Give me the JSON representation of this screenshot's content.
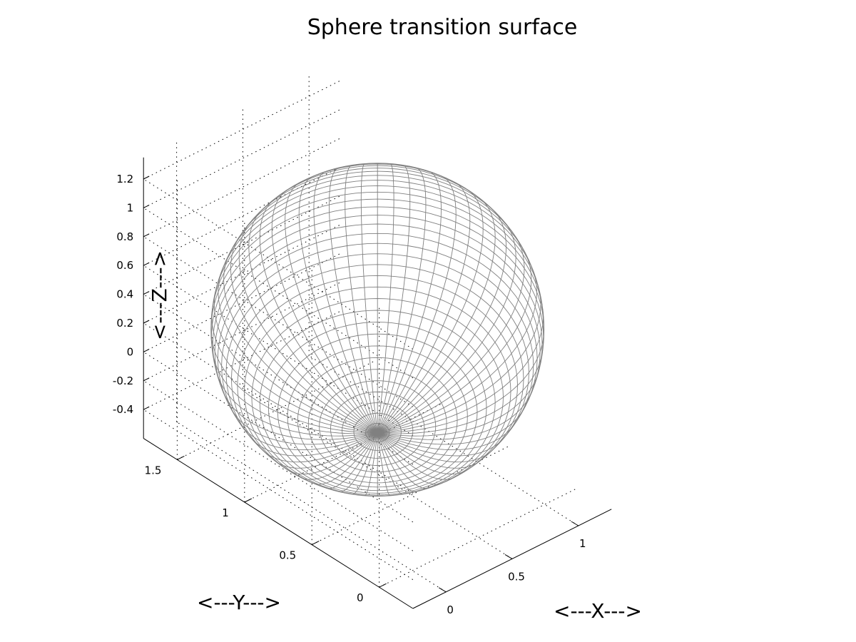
{
  "chart_data": {
    "type": "surface3d",
    "title": "Sphere transition surface",
    "xlabel": "<---X--->",
    "ylabel": "<---Y--->",
    "zlabel": "<---Z--->",
    "x_ticks": [
      "0",
      "0.5",
      "1"
    ],
    "y_ticks": [
      "0",
      "0.5",
      "1",
      "1.5"
    ],
    "z_ticks": [
      "-0.4",
      "-0.2",
      "0",
      "0.2",
      "0.4",
      "0.6",
      "0.8",
      "1",
      "1.2"
    ],
    "xlim": [
      -0.25,
      1.25
    ],
    "ylim": [
      -0.25,
      1.75
    ],
    "zlim": [
      -0.6,
      1.35
    ],
    "grid": true,
    "surface": {
      "shape": "sphere",
      "center": [
        0.5,
        0.75,
        0.4
      ],
      "radius": 0.875,
      "mesh_color": "#808080"
    },
    "colors": {
      "mesh": "#808080",
      "axes": "#000000",
      "grid": "#000000",
      "background": "#ffffff"
    }
  }
}
